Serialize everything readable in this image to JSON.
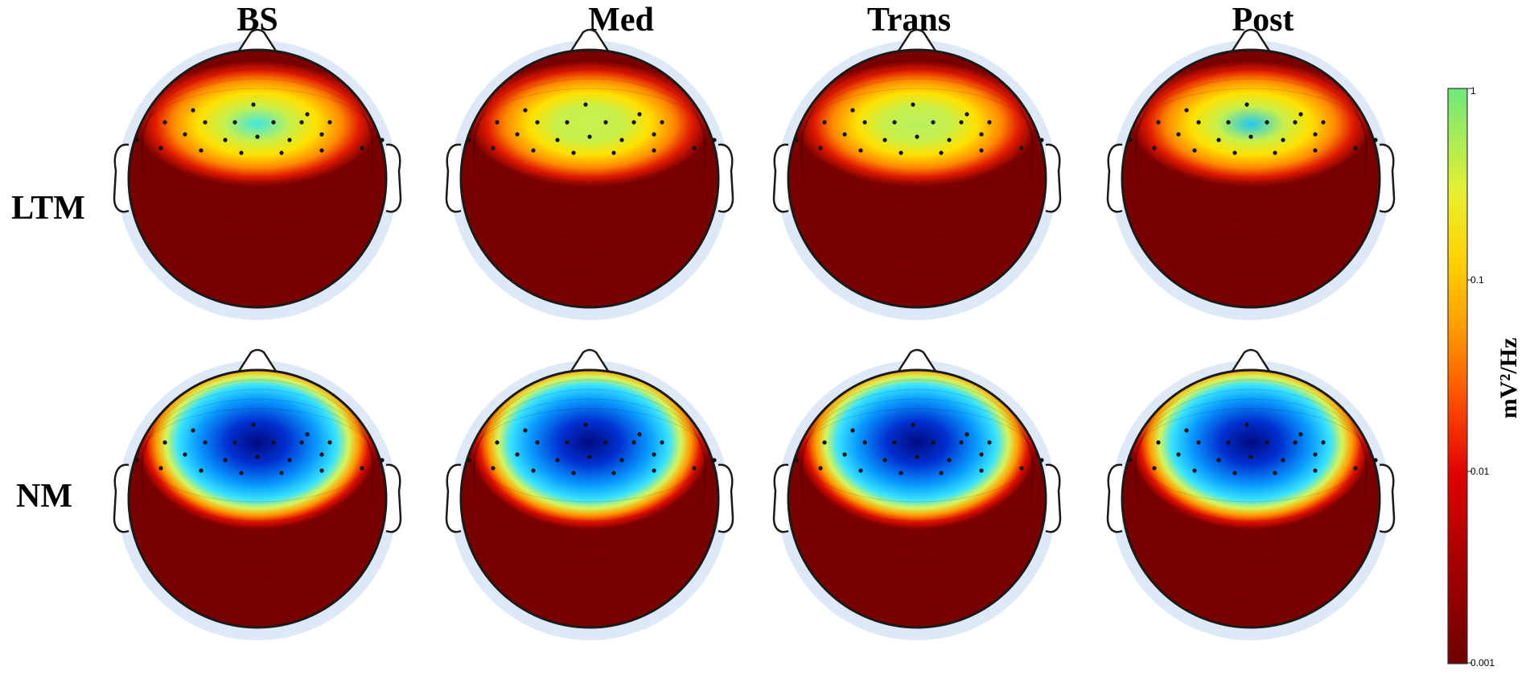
{
  "figure": {
    "column_titles": [
      "BS",
      "Med",
      "Trans",
      "Post"
    ],
    "row_labels": [
      "LTM",
      "NM"
    ],
    "colorbar": {
      "label": "mV²/Hz",
      "ticks": [
        "1",
        "0.1",
        "0.01",
        "0.001"
      ],
      "scale": "log",
      "range": [
        0.001,
        1
      ],
      "colors": [
        "#7a0000",
        "#d40000",
        "#ff5a00",
        "#ffcc00",
        "#d8f04a",
        "#7ee87a"
      ]
    },
    "maps": [
      {
        "row": "LTM",
        "column": "BS",
        "pattern": "frontal",
        "center_color": "#40e8e0"
      },
      {
        "row": "LTM",
        "column": "Med",
        "pattern": "frontal",
        "center_color": "#c8f050"
      },
      {
        "row": "LTM",
        "column": "Trans",
        "pattern": "frontal",
        "center_color": "#b8f060"
      },
      {
        "row": "LTM",
        "column": "Post",
        "pattern": "frontal",
        "center_color": "#20c8f0"
      },
      {
        "row": "NM",
        "column": "BS",
        "pattern": "frontal",
        "center_color": "#000a80"
      },
      {
        "row": "NM",
        "column": "Med",
        "pattern": "frontal",
        "center_color": "#000a80"
      },
      {
        "row": "NM",
        "column": "Trans",
        "pattern": "frontal",
        "center_color": "#000a80"
      },
      {
        "row": "NM",
        "column": "Post",
        "pattern": "frontal",
        "center_color": "#000a80"
      }
    ],
    "colors": {
      "background_red": "#7a0000",
      "outline": "#1a1a1a",
      "halo": "#dde9f7"
    }
  }
}
